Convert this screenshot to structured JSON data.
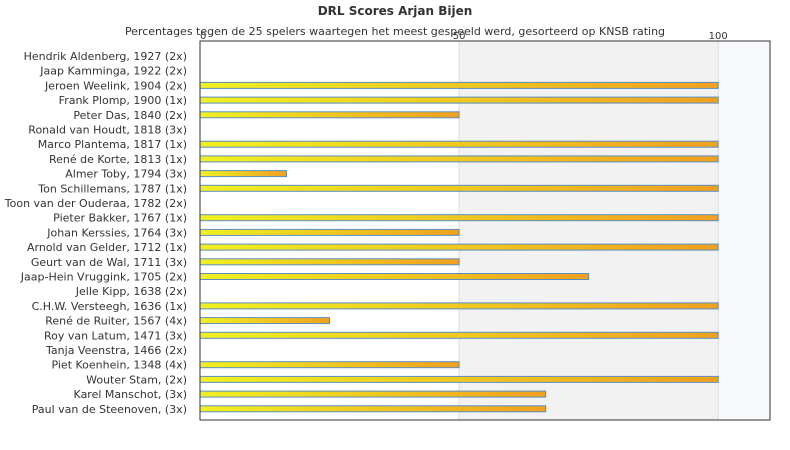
{
  "chart_data": {
    "type": "bar",
    "orientation": "horizontal",
    "title": "DRL Scores Arjan Bijen",
    "subtitle": "Percentages tegen de 25 spelers waartegen het meest gespeeld werd, gesorteerd op KNSB rating",
    "xlim": [
      0,
      110
    ],
    "xticks": [
      0,
      50,
      100
    ],
    "grid": true,
    "legend": "none",
    "categories": [
      "Hendrik Aldenberg, 1927 (2x)",
      "Jaap Kamminga, 1922 (2x)",
      "Jeroen Weelink, 1904 (2x)",
      "Frank Plomp, 1900 (1x)",
      "Peter Das, 1840 (2x)",
      "Ronald van Houdt, 1818 (3x)",
      "Marco Plantema, 1817 (1x)",
      "René de Korte, 1813 (1x)",
      "Almer Toby, 1794 (3x)",
      "Ton Schillemans, 1787 (1x)",
      "Toon van der Ouderaa, 1782 (2x)",
      "Pieter Bakker, 1767 (1x)",
      "Johan Kerssies, 1764 (3x)",
      "Arnold van Gelder, 1712 (1x)",
      "Geurt van de Wal, 1711 (3x)",
      "Jaap-Hein Vruggink, 1705 (2x)",
      "Jelle Kipp, 1638 (2x)",
      "C.H.W. Versteegh, 1636 (1x)",
      "René de Ruiter, 1567 (4x)",
      "Roy van Latum, 1471 (3x)",
      "Tanja Veenstra, 1466 (2x)",
      "Piet Koenhein, 1348 (4x)",
      "Wouter Stam,  (2x)",
      "Karel Manschot,  (3x)",
      "Paul van de Steenoven,  (3x)"
    ],
    "values": [
      0,
      0,
      100,
      100,
      50,
      0,
      100,
      100,
      16.7,
      100,
      0,
      100,
      50,
      100,
      50,
      75,
      0,
      100,
      25,
      100,
      0,
      50,
      100,
      66.7,
      66.7
    ],
    "colors": {
      "bar_start": "#f0f020",
      "bar_end": "#f0a020",
      "bar_border": "#5a8fc0",
      "band_fill": "#f2f2f2",
      "band_fill_light": "#f6f8fc",
      "axis": "#333333",
      "grid": "#dddddd"
    }
  }
}
